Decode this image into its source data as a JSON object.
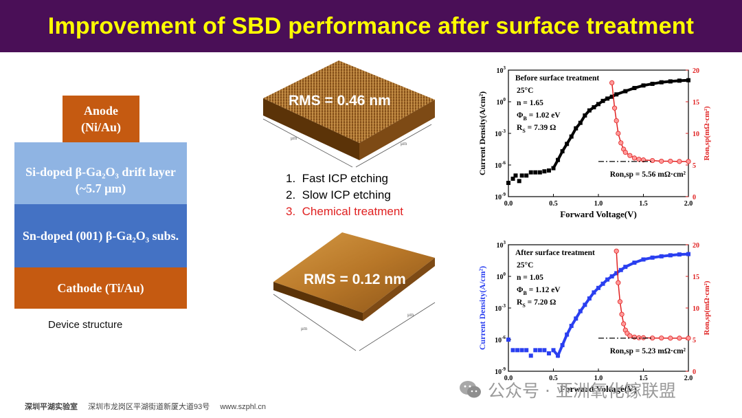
{
  "title": "Improvement of SBD performance after surface treatment",
  "device": {
    "anode": [
      "Anode",
      "(Ni/Au)"
    ],
    "drift": [
      "Si-doped β-Ga₂O₃ drift layer",
      "(~5.7 μm)"
    ],
    "substrate": "Sn-doped (001) β-Ga₂O₃ subs.",
    "cathode": "Cathode (Ti/Au)",
    "caption": "Device structure",
    "colors": {
      "anode": "#c55a11",
      "drift": "#8fb4e3",
      "substrate": "#4472c4",
      "cathode": "#c55a11"
    }
  },
  "afm": {
    "top_rms": "RMS = 0.46 nm",
    "bottom_rms": "RMS = 0.12 nm",
    "axis_unit": "μm"
  },
  "steps": [
    {
      "num": "1.",
      "text": "Fast ICP etching",
      "color": "#000000"
    },
    {
      "num": "2.",
      "text": "Slow ICP etching",
      "color": "#000000"
    },
    {
      "num": "3.",
      "text": "Chemical treatment",
      "color": "#e02020"
    }
  ],
  "chart_data": [
    {
      "type": "scatter",
      "title": "Before surface treatment",
      "params": [
        "25°C",
        "n = 1.65",
        "Φ_B = 1.02 eV",
        "R_S = 7.39 Ω"
      ],
      "annotation": "Ron,sp = 5.56 mΩ·cm²",
      "xlabel": "Forward Voltage(V)",
      "ylabel": "Current Density(A/cm²)",
      "y2label": "Ron,sp(mΩ·cm²)",
      "xlim": [
        0,
        2.0
      ],
      "ylim_log10": [
        -9,
        3
      ],
      "y2lim": [
        0,
        20
      ],
      "xticks": [
        "0.0",
        "0.5",
        "1.0",
        "1.5",
        "2.0"
      ],
      "yticks": [
        "10-9",
        "10-6",
        "10-3",
        "100",
        "103"
      ],
      "y2ticks": [
        "0",
        "5",
        "10",
        "15",
        "20"
      ],
      "series": [
        {
          "color": "#000000",
          "x": [
            0.0,
            0.05,
            0.08,
            0.12,
            0.15,
            0.2,
            0.25,
            0.3,
            0.35,
            0.4,
            0.45,
            0.5,
            0.55,
            0.6,
            0.65,
            0.7,
            0.75,
            0.8,
            0.85,
            0.9,
            0.95,
            1.0,
            1.05,
            1.1,
            1.15,
            1.2,
            1.3,
            1.4,
            1.5,
            1.6,
            1.7,
            1.8,
            1.9,
            2.0
          ],
          "y": [
            2e-08,
            5e-08,
            1e-07,
            3e-08,
            1e-07,
            1e-07,
            2e-07,
            2e-07,
            2e-07,
            2.5e-07,
            3e-07,
            5e-07,
            3e-06,
            2e-05,
            0.0001,
            0.0005,
            0.003,
            0.01,
            0.05,
            0.15,
            0.3,
            0.6,
            1.2,
            2.0,
            3.0,
            5.0,
            10,
            20,
            35,
            50,
            70,
            85,
            100,
            110
          ]
        },
        {
          "color": "#e02020",
          "axis": "right",
          "x": [
            1.15,
            1.18,
            1.2,
            1.22,
            1.25,
            1.28,
            1.3,
            1.35,
            1.4,
            1.45,
            1.5,
            1.6,
            1.7,
            1.8,
            1.9,
            2.0
          ],
          "y": [
            18,
            14,
            12,
            10,
            8.5,
            7.5,
            7.0,
            6.5,
            6.1,
            5.9,
            5.8,
            5.7,
            5.6,
            5.6,
            5.56,
            5.56
          ]
        }
      ]
    },
    {
      "type": "scatter",
      "title": "After surface treatment",
      "params": [
        "25°C",
        "n = 1.05",
        "Φ_B = 1.12 eV",
        "R_S = 7.20 Ω"
      ],
      "annotation": "Ron,sp = 5.23 mΩ·cm²",
      "xlabel": "Forward Voltage(V)",
      "ylabel": "Current Density(A/cm²)",
      "y2label": "Ron,sp(mΩ·cm²)",
      "xlim": [
        0,
        2.0
      ],
      "ylim_log10": [
        -9,
        3
      ],
      "y2lim": [
        0,
        20
      ],
      "xticks": [
        "0.0",
        "0.5",
        "1.0",
        "1.5",
        "2.0"
      ],
      "yticks": [
        "10-9",
        "10-6",
        "10-3",
        "100",
        "103"
      ],
      "y2ticks": [
        "0",
        "5",
        "10",
        "15",
        "20"
      ],
      "series": [
        {
          "color": "#2a3ff0",
          "x": [
            0.0,
            0.05,
            0.1,
            0.15,
            0.2,
            0.25,
            0.3,
            0.35,
            0.4,
            0.45,
            0.5,
            0.55,
            0.6,
            0.65,
            0.7,
            0.75,
            0.8,
            0.85,
            0.9,
            0.95,
            1.0,
            1.05,
            1.1,
            1.15,
            1.2,
            1.25,
            1.3,
            1.4,
            1.5,
            1.6,
            1.7,
            1.8,
            1.9,
            2.0
          ],
          "y": [
            1e-06,
            1e-07,
            1e-07,
            1e-07,
            1e-07,
            3e-08,
            1e-07,
            1e-07,
            1e-07,
            5e-08,
            1e-07,
            3e-08,
            3e-07,
            3e-06,
            2e-05,
            0.0001,
            0.0005,
            0.002,
            0.008,
            0.03,
            0.08,
            0.2,
            0.5,
            1.0,
            2.0,
            4.0,
            8.0,
            20,
            40,
            60,
            80,
            100,
            120,
            130
          ]
        },
        {
          "color": "#e02020",
          "axis": "right",
          "x": [
            1.2,
            1.22,
            1.24,
            1.26,
            1.28,
            1.3,
            1.32,
            1.35,
            1.4,
            1.45,
            1.5,
            1.6,
            1.7,
            1.8,
            1.9,
            2.0
          ],
          "y": [
            19,
            14,
            11,
            9,
            7.5,
            6.5,
            6.0,
            5.6,
            5.4,
            5.3,
            5.3,
            5.25,
            5.25,
            5.23,
            5.23,
            5.23
          ]
        }
      ]
    }
  ],
  "footer": {
    "org": "深圳平湖实验室",
    "address": "深圳市龙岗区平湖街道新厦大道93号",
    "website": "www.szphl.cn"
  },
  "watermark": "公众号 · 亚洲氧化镓联盟"
}
